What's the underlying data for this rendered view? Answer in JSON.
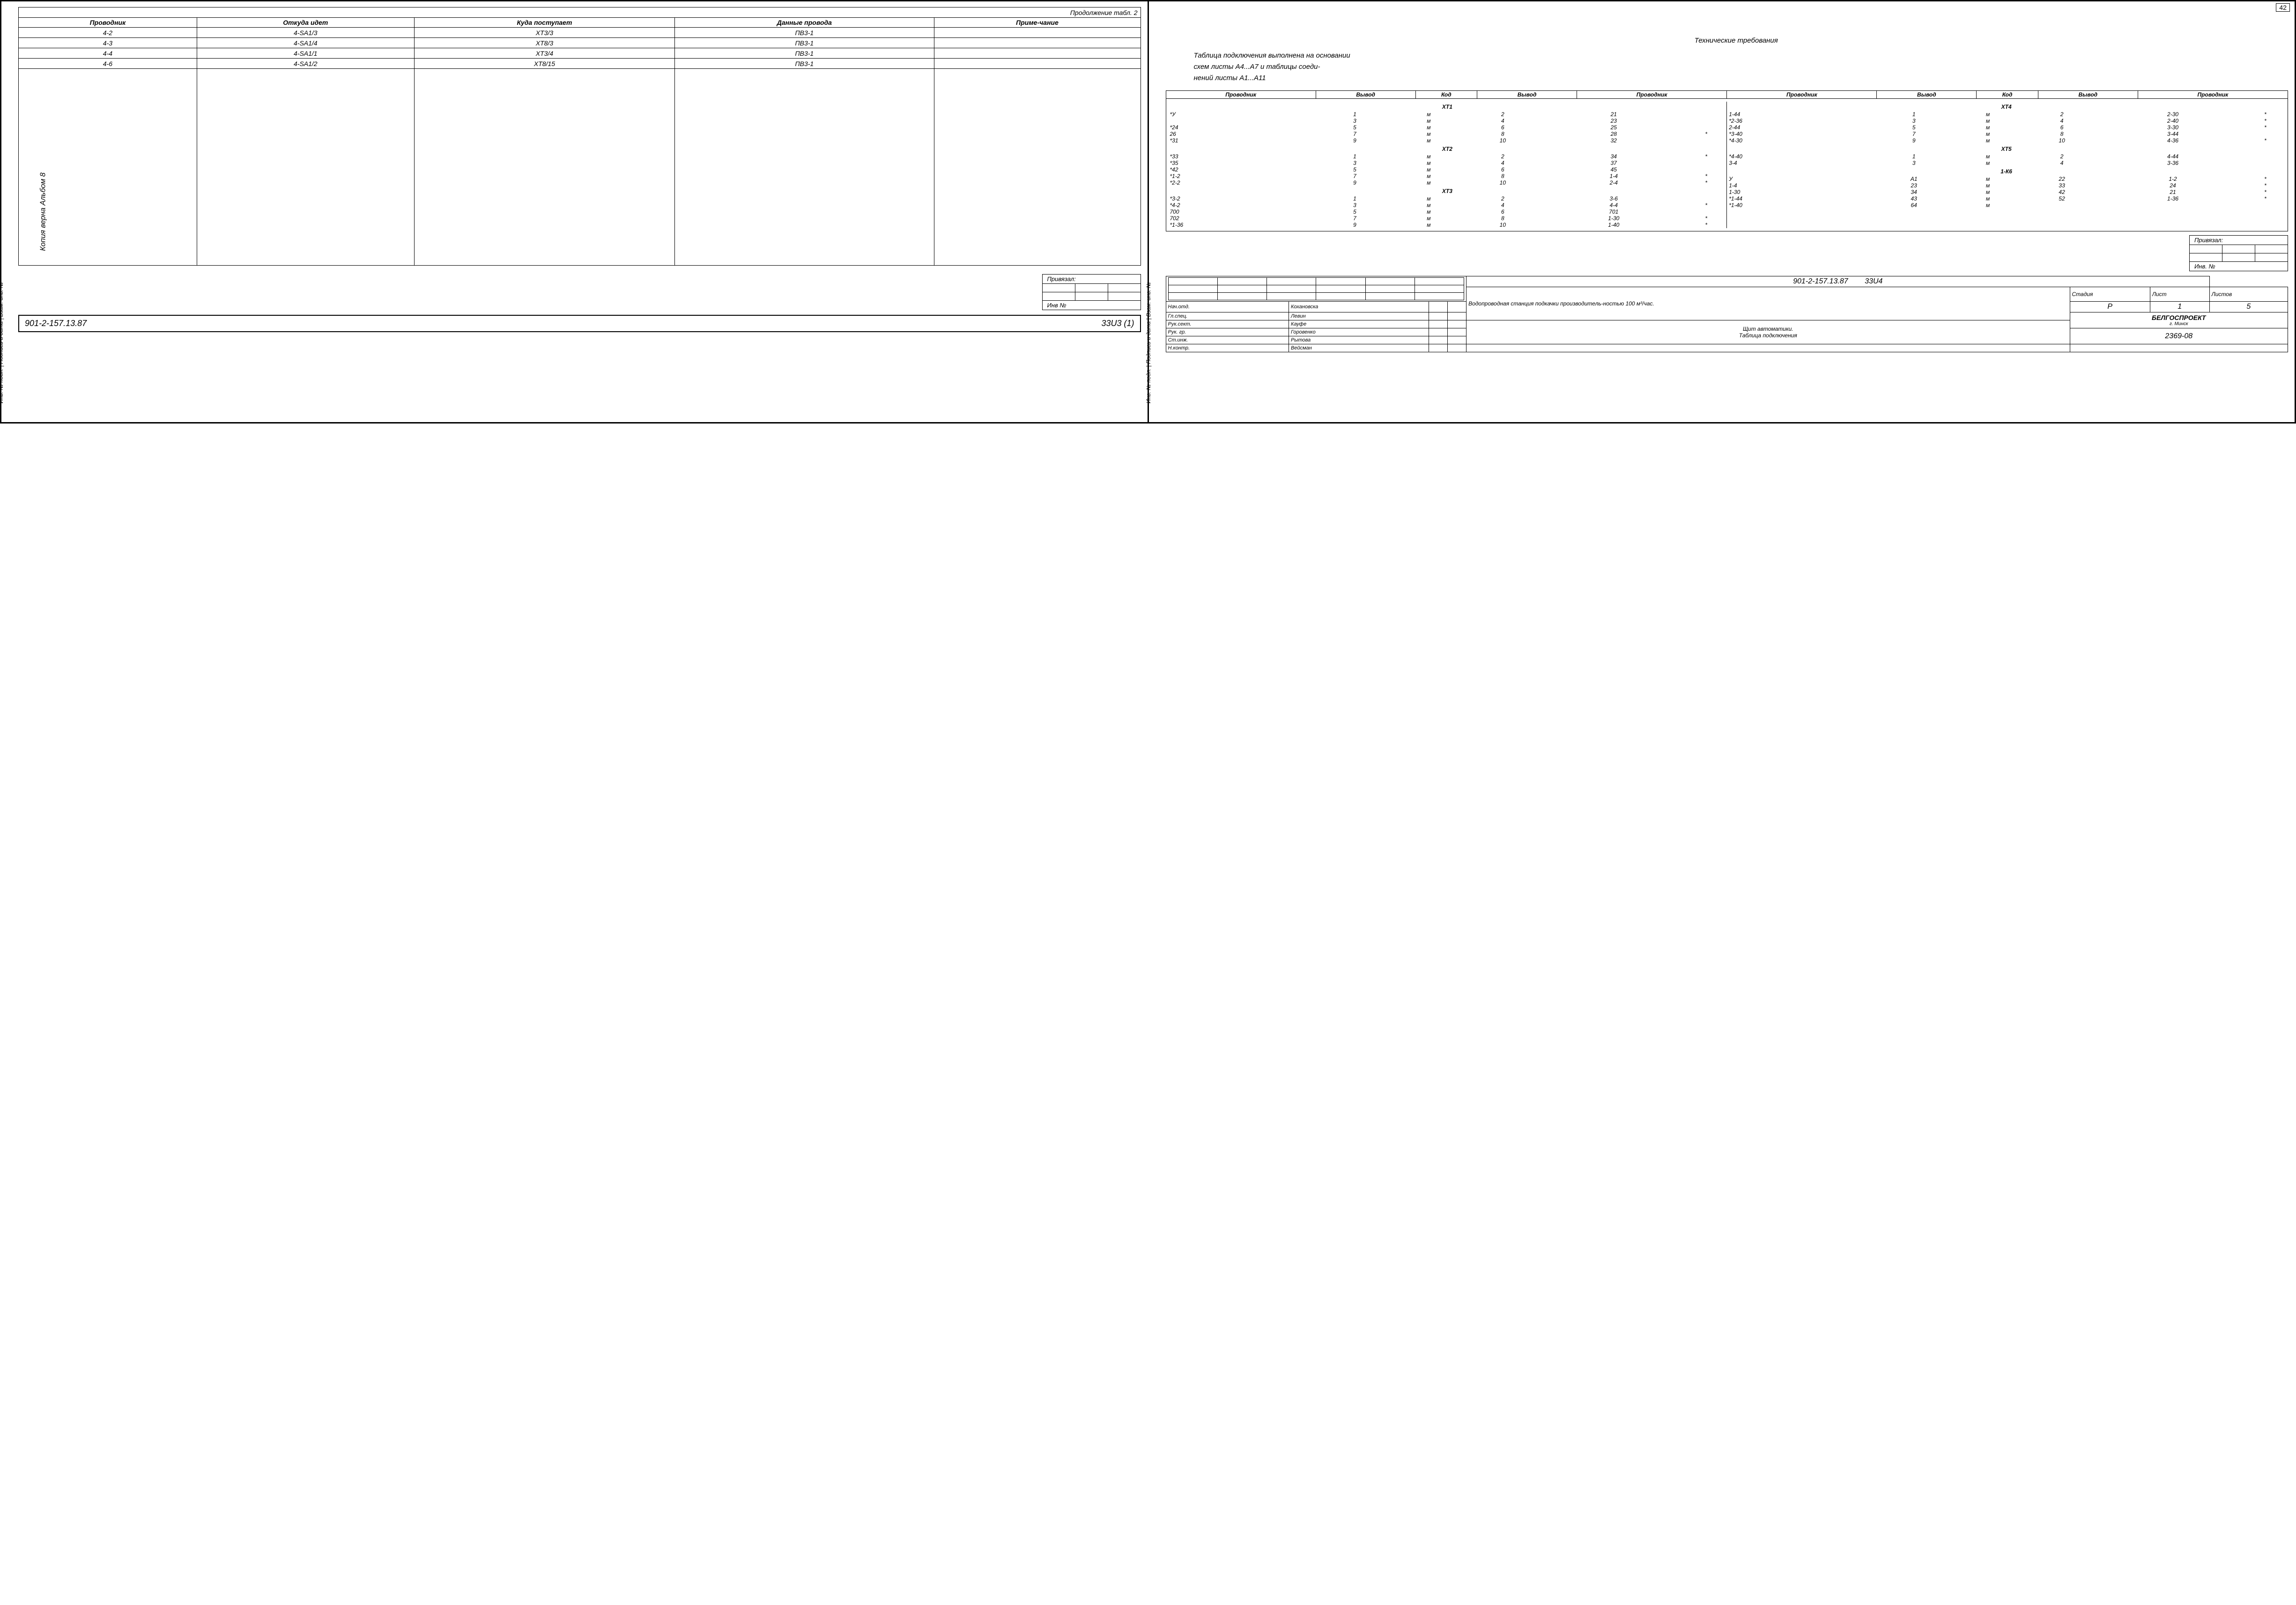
{
  "left": {
    "side_label": "Копия верна\nАльбом 8",
    "side_strip": "Инв. № подл. | Подпись и дата | Взам. инв. №",
    "table_title": "Продолжение табл. 2",
    "headers": [
      "Проводник",
      "Откуда идет",
      "Куда поступает",
      "Данные провода",
      "Приме-чание"
    ],
    "rows": [
      [
        "4-2",
        "4-SA1/3",
        "XT3/3",
        "ПВ3-1",
        ""
      ],
      [
        "4-3",
        "4-SA1/4",
        "XT8/3",
        "ПВ3-1",
        ""
      ],
      [
        "4-4",
        "4-SA1/1",
        "XT3/4",
        "ПВ3-1",
        ""
      ],
      [
        "4-6",
        "4-SA1/2",
        "XT8/15",
        "ПВ3-1",
        ""
      ]
    ],
    "priv_label": "Привязал:",
    "inv_label": "Инв №",
    "docnum": "901-2-157.13.87",
    "sheet": "33U3",
    "sheetsuffix": "(1)"
  },
  "right": {
    "pagenum": "42",
    "side_strip": "Инв. № подл. | Подпись и дата | Взам. инв. №",
    "tech_title": "Технические требования",
    "tech_text1": "Таблица подключения выполнена на основании",
    "tech_text2": "схем           листы А4...А7  и  таблицы соеди-",
    "tech_text3": "нений          листы А1...А11",
    "conn_headers": [
      "Проводник",
      "Вывод",
      "Код",
      "Вывод",
      "Проводник",
      "Проводник",
      "Вывод",
      "Код",
      "Вывод",
      "Проводник"
    ],
    "groups_left": [
      {
        "name": "XT1",
        "rows": [
          [
            "*У",
            "1",
            "м",
            "2",
            "21",
            ""
          ],
          [
            "",
            "3",
            "м",
            "4",
            "23",
            ""
          ],
          [
            "*24",
            "5",
            "м",
            "6",
            "25",
            ""
          ],
          [
            "26",
            "7",
            "м",
            "8",
            "28",
            "*"
          ],
          [
            "*31",
            "9",
            "м",
            "10",
            "32",
            ""
          ]
        ]
      },
      {
        "name": "XT2",
        "rows": [
          [
            "*33",
            "1",
            "м",
            "2",
            "34",
            "*"
          ],
          [
            "*35",
            "3",
            "м",
            "4",
            "37",
            ""
          ],
          [
            "*42",
            "5",
            "м",
            "6",
            "45",
            ""
          ],
          [
            "*1-2",
            "7",
            "м",
            "8",
            "1-4",
            "*"
          ],
          [
            "*2-2",
            "9",
            "м",
            "10",
            "2-4",
            "*"
          ]
        ]
      },
      {
        "name": "XT3",
        "rows": [
          [
            "*3-2",
            "1",
            "м",
            "2",
            "3-6",
            ""
          ],
          [
            "*4-2",
            "3",
            "м",
            "4",
            "4-4",
            "*"
          ],
          [
            "700",
            "5",
            "м",
            "6",
            "701",
            ""
          ],
          [
            "702",
            "7",
            "м",
            "8",
            "1-30",
            "*"
          ],
          [
            "*1-36",
            "9",
            "м",
            "10",
            "1-40",
            "*"
          ]
        ]
      }
    ],
    "groups_right": [
      {
        "name": "XT4",
        "rows": [
          [
            "1-44",
            "1",
            "м",
            "2",
            "2-30",
            "*"
          ],
          [
            "*2-36",
            "3",
            "м",
            "4",
            "2-40",
            "*"
          ],
          [
            "2-44",
            "5",
            "м",
            "6",
            "3-30",
            "*"
          ],
          [
            "*3-40",
            "7",
            "м",
            "8",
            "3-44",
            ""
          ],
          [
            "*4-30",
            "9",
            "м",
            "10",
            "4-36",
            "*"
          ]
        ]
      },
      {
        "name": "XT5",
        "rows": [
          [
            "*4-40",
            "1",
            "м",
            "2",
            "4-44",
            ""
          ],
          [
            "3-4",
            "3",
            "м",
            "4",
            "3-36",
            ""
          ]
        ]
      },
      {
        "name": "1-К6",
        "rows": [
          [
            "У",
            "А1",
            "м",
            "22",
            "1-2",
            "*"
          ],
          [
            "1-4",
            "23",
            "м",
            "33",
            "24",
            "*"
          ],
          [
            "1-30",
            "34",
            "м",
            "42",
            "21",
            "*"
          ],
          [
            "*1-44",
            "43",
            "м",
            "52",
            "1-36",
            "*"
          ],
          [
            "*1-40",
            "64",
            "м",
            "",
            "",
            ""
          ]
        ]
      }
    ],
    "priv_label": "Привязал:",
    "inv_label": "Инв. №",
    "docnum": "901-2-157.13.87",
    "sheet": "33U4",
    "roles": [
      [
        "Нач.отд.",
        "Кохановска"
      ],
      [
        "Гл.спец.",
        "Левин"
      ],
      [
        "Рук.сект.",
        "Кауфе"
      ],
      [
        "Рук. гр.",
        "Горовенко"
      ],
      [
        "Ст.инж.",
        "Рытова"
      ],
      [
        "Н.контр.",
        "Вейсман"
      ]
    ],
    "proj_title1": "Водопроводная станция подкачки производитель-ностью 100 м³/час.",
    "proj_title2": "Щит автоматики.\nТаблица подключения",
    "stage_h": [
      "Стадия",
      "Лист",
      "Листов"
    ],
    "stage_v": [
      "Р",
      "1",
      "5"
    ],
    "org": "БЕЛГОСПРОЕКТ",
    "org_city": "г. Минск",
    "archnum": "2369-08"
  }
}
